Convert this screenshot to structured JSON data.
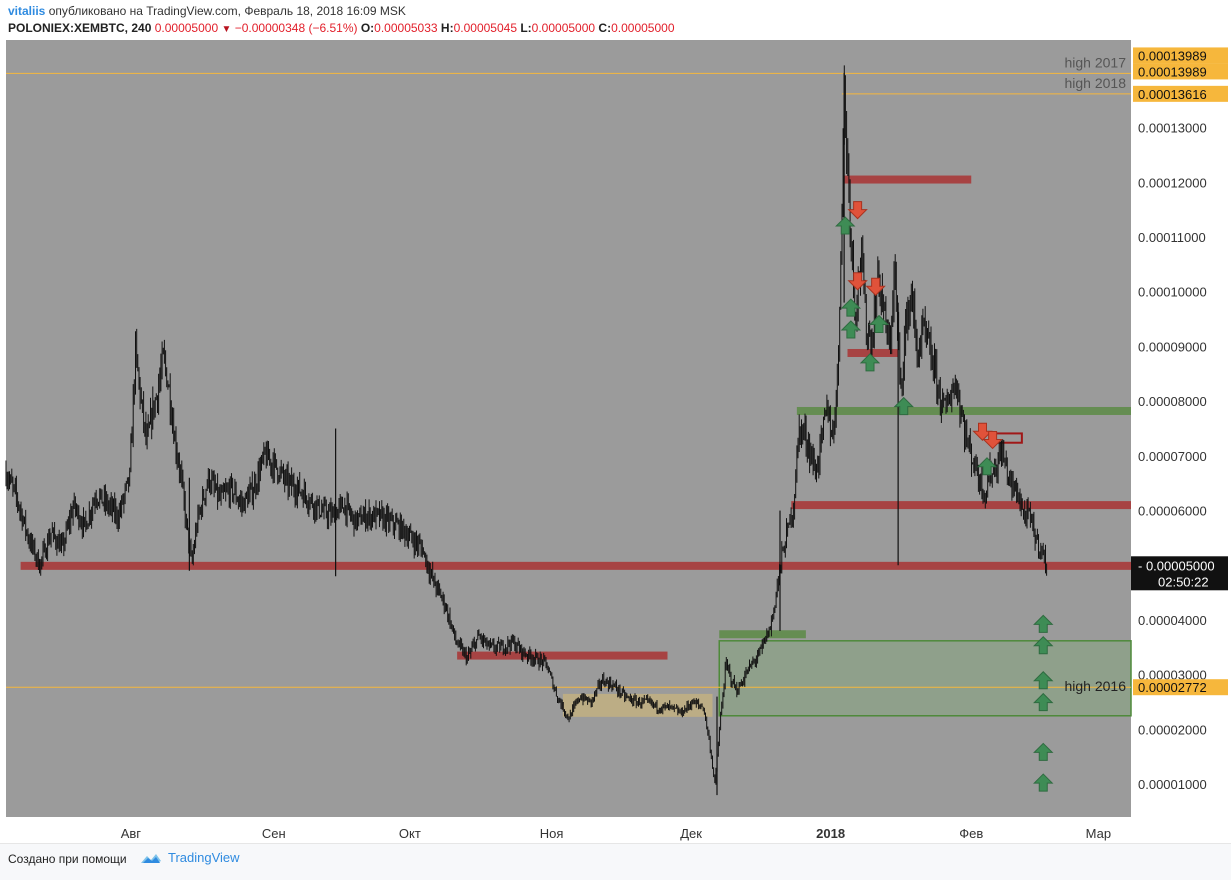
{
  "header": {
    "author": "vitaliis",
    "published": "опубликовано на TradingView.com, Февраль 18, 2018 16:09 MSK"
  },
  "symbol_bar": {
    "symbol": "POLONIEX:XEMBTC, 240",
    "price": "0.00005000",
    "change": "−0.00000348 (−6.51%)",
    "o_label": "O:",
    "o": "0.00005033",
    "h_label": "H:",
    "h": "0.00005045",
    "l_label": "L:",
    "l": "0.00005000",
    "c_label": "C:",
    "c": "0.00005000"
  },
  "footer": {
    "created": "Создано при помощи",
    "brand": "TradingView"
  },
  "colors": {
    "plot_bg": "#9b9b9b",
    "red_zone": "#a83a3a",
    "green_zone": "#5f8c4a",
    "orange_line": "#f6b73c",
    "tan_zone": "#c7b37e",
    "arrow_green": "#3e8c55",
    "arrow_red": "#e0523a"
  },
  "chart_data": {
    "type": "candlestick",
    "ylim": [
      4e-06,
      0.000146
    ],
    "y_ticks": [
      "0.00001000",
      "0.00002000",
      "0.00003000",
      "0.00004000",
      "0.00006000",
      "0.00007000",
      "0.00008000",
      "0.00009000",
      "0.00010000",
      "0.00011000",
      "0.00012000",
      "0.00013000"
    ],
    "x_labels": [
      "Авг",
      "Сен",
      "Окт",
      "Ноя",
      "Дек",
      "2018",
      "Фев",
      "Мар"
    ],
    "x_label_positions": [
      0.111,
      0.238,
      0.359,
      0.485,
      0.609,
      0.733,
      0.858,
      0.971
    ],
    "price_path": [
      [
        0.0,
        6.7e-05
      ],
      [
        0.01,
        6.2e-05
      ],
      [
        0.02,
        5.5e-05
      ],
      [
        0.03,
        5e-05
      ],
      [
        0.04,
        5.6e-05
      ],
      [
        0.05,
        5.3e-05
      ],
      [
        0.06,
        6.1e-05
      ],
      [
        0.07,
        5.7e-05
      ],
      [
        0.08,
        6.3e-05
      ],
      [
        0.09,
        6.1e-05
      ],
      [
        0.1,
        5.9e-05
      ],
      [
        0.11,
        6.6e-05
      ],
      [
        0.115,
        8.9e-05
      ],
      [
        0.12,
        8e-05
      ],
      [
        0.125,
        7.2e-05
      ],
      [
        0.13,
        7.8e-05
      ],
      [
        0.135,
        8.2e-05
      ],
      [
        0.14,
        8.8e-05
      ],
      [
        0.145,
        8.2e-05
      ],
      [
        0.15,
        7.3e-05
      ],
      [
        0.155,
        6.7e-05
      ],
      [
        0.16,
        5.8e-05
      ],
      [
        0.165,
        5e-05
      ],
      [
        0.17,
        5.8e-05
      ],
      [
        0.18,
        6.6e-05
      ],
      [
        0.19,
        6.2e-05
      ],
      [
        0.2,
        6.4e-05
      ],
      [
        0.21,
        6.1e-05
      ],
      [
        0.22,
        6.4e-05
      ],
      [
        0.23,
        7e-05
      ],
      [
        0.24,
        6.8e-05
      ],
      [
        0.25,
        6.5e-05
      ],
      [
        0.26,
        6.4e-05
      ],
      [
        0.27,
        6.2e-05
      ],
      [
        0.28,
        6e-05
      ],
      [
        0.29,
        5.9e-05
      ],
      [
        0.3,
        6.1e-05
      ],
      [
        0.31,
        5.8e-05
      ],
      [
        0.32,
        5.9e-05
      ],
      [
        0.33,
        5.9e-05
      ],
      [
        0.34,
        5.8e-05
      ],
      [
        0.35,
        5.7e-05
      ],
      [
        0.36,
        5.5e-05
      ],
      [
        0.37,
        5.3e-05
      ],
      [
        0.38,
        4.7e-05
      ],
      [
        0.39,
        4.3e-05
      ],
      [
        0.4,
        3.6e-05
      ],
      [
        0.41,
        3.3e-05
      ],
      [
        0.42,
        3.7e-05
      ],
      [
        0.43,
        3.5e-05
      ],
      [
        0.44,
        3.5e-05
      ],
      [
        0.45,
        3.6e-05
      ],
      [
        0.46,
        3.4e-05
      ],
      [
        0.47,
        3.3e-05
      ],
      [
        0.48,
        3.2e-05
      ],
      [
        0.49,
        2.6e-05
      ],
      [
        0.5,
        2.2e-05
      ],
      [
        0.51,
        2.6e-05
      ],
      [
        0.52,
        2.5e-05
      ],
      [
        0.53,
        2.9e-05
      ],
      [
        0.54,
        2.8e-05
      ],
      [
        0.55,
        2.6e-05
      ],
      [
        0.56,
        2.5e-05
      ],
      [
        0.57,
        2.5e-05
      ],
      [
        0.58,
        2.4e-05
      ],
      [
        0.59,
        2.4e-05
      ],
      [
        0.6,
        2.3e-05
      ],
      [
        0.61,
        2.5e-05
      ],
      [
        0.62,
        2.4e-05
      ],
      [
        0.625,
        1.8e-05
      ],
      [
        0.63,
        1e-05
      ],
      [
        0.635,
        2.2e-05
      ],
      [
        0.64,
        3.2e-05
      ],
      [
        0.645,
        2.9e-05
      ],
      [
        0.65,
        2.7e-05
      ],
      [
        0.66,
        3.1e-05
      ],
      [
        0.67,
        3.4e-05
      ],
      [
        0.68,
        3.9e-05
      ],
      [
        0.69,
        5.2e-05
      ],
      [
        0.7,
        6.1e-05
      ],
      [
        0.705,
        7.5e-05
      ],
      [
        0.71,
        7.4e-05
      ],
      [
        0.72,
        6.7e-05
      ],
      [
        0.73,
        7.9e-05
      ],
      [
        0.735,
        7.3e-05
      ],
      [
        0.74,
        8.8e-05
      ],
      [
        0.745,
        0.000137
      ],
      [
        0.75,
        0.000115
      ],
      [
        0.755,
        9.6e-05
      ],
      [
        0.76,
        0.000107
      ],
      [
        0.765,
        9.3e-05
      ],
      [
        0.77,
        9.1e-05
      ],
      [
        0.775,
        0.000103
      ],
      [
        0.78,
        9.7e-05
      ],
      [
        0.785,
        8.9e-05
      ],
      [
        0.79,
        0.000104
      ],
      [
        0.795,
        8.2e-05
      ],
      [
        0.8,
        9.4e-05
      ],
      [
        0.805,
        0.0001
      ],
      [
        0.81,
        8.8e-05
      ],
      [
        0.815,
        9.3e-05
      ],
      [
        0.82,
        9e-05
      ],
      [
        0.825,
        8.6e-05
      ],
      [
        0.83,
        8.1e-05
      ],
      [
        0.835,
        7.8e-05
      ],
      [
        0.84,
        8.2e-05
      ],
      [
        0.845,
        8.3e-05
      ],
      [
        0.85,
        7.7e-05
      ],
      [
        0.855,
        7.2e-05
      ],
      [
        0.86,
        6.9e-05
      ],
      [
        0.865,
        6.6e-05
      ],
      [
        0.87,
        6.3e-05
      ],
      [
        0.875,
        6.7e-05
      ],
      [
        0.88,
        6.8e-05
      ],
      [
        0.885,
        7.1e-05
      ],
      [
        0.89,
        6.7e-05
      ],
      [
        0.895,
        6.4e-05
      ],
      [
        0.9,
        6.3e-05
      ],
      [
        0.905,
        5.9e-05
      ],
      [
        0.91,
        5.9e-05
      ],
      [
        0.915,
        5.5e-05
      ],
      [
        0.92,
        5.3e-05
      ],
      [
        0.925,
        5e-05
      ]
    ],
    "spikes": [
      {
        "x": 0.163,
        "lo": 4.9e-05,
        "hi": 6.6e-05
      },
      {
        "x": 0.293,
        "lo": 4.8e-05,
        "hi": 7.5e-05
      },
      {
        "x": 0.632,
        "lo": 8e-06,
        "hi": 2.6e-05
      },
      {
        "x": 0.688,
        "lo": 3.8e-05,
        "hi": 6e-05
      },
      {
        "x": 0.793,
        "lo": 5e-05,
        "hi": 9.8e-05
      },
      {
        "x": 0.745,
        "lo": 9.8e-05,
        "hi": 0.00014
      }
    ],
    "zones": [
      {
        "kind": "red",
        "x0": 0.013,
        "x1": 1.0,
        "y": 4.99e-05
      },
      {
        "kind": "red",
        "x0": 0.401,
        "x1": 0.588,
        "y": 3.35e-05
      },
      {
        "kind": "red",
        "x0": 0.745,
        "x1": 0.858,
        "y": 0.0001205
      },
      {
        "kind": "red",
        "x0": 0.748,
        "x1": 0.793,
        "y": 8.88e-05
      },
      {
        "kind": "red",
        "x0": 0.698,
        "x1": 1.0,
        "y": 6.1e-05
      },
      {
        "kind": "green",
        "x0": 0.703,
        "x1": 1.0,
        "y": 7.82e-05
      },
      {
        "kind": "green",
        "x0": 0.634,
        "x1": 0.711,
        "y": 3.74e-05
      }
    ],
    "green_box": {
      "x0": 0.634,
      "x1": 1.0,
      "y0": 2.25e-05,
      "y1": 3.62e-05
    },
    "tan_box": {
      "x0": 0.495,
      "x1": 0.628,
      "y0": 2.23e-05,
      "y1": 2.65e-05
    },
    "red_box": {
      "x0": 0.88,
      "x1": 0.903,
      "y0": 7.24e-05,
      "y1": 7.41e-05
    },
    "hlines": [
      {
        "y": 0.00013989,
        "label": "high 2017",
        "x0": 0.0,
        "price": "0.00013989"
      },
      {
        "y": 0.00013616,
        "label": "high 2018",
        "x0": 0.743,
        "price": "0.00013616"
      },
      {
        "y": 2.772e-05,
        "label": "high 2016",
        "x0": 0.0,
        "price": "0.00002772"
      }
    ],
    "extra_price_label": {
      "y": 0.00013989,
      "price": "0.00013989"
    },
    "current": {
      "price": "0.00005000",
      "timer": "02:50:22"
    },
    "arrows_up": [
      {
        "x": 0.746,
        "y": 0.000112
      },
      {
        "x": 0.751,
        "y": 9.7e-05
      },
      {
        "x": 0.751,
        "y": 9.3e-05
      },
      {
        "x": 0.768,
        "y": 8.7e-05
      },
      {
        "x": 0.776,
        "y": 9.4e-05
      },
      {
        "x": 0.798,
        "y": 7.9e-05
      },
      {
        "x": 0.872,
        "y": 6.8e-05
      },
      {
        "x": 0.922,
        "y": 3.92e-05
      },
      {
        "x": 0.922,
        "y": 3.53e-05
      },
      {
        "x": 0.922,
        "y": 2.89e-05
      },
      {
        "x": 0.922,
        "y": 2.49e-05
      },
      {
        "x": 0.922,
        "y": 1.58e-05
      },
      {
        "x": 0.922,
        "y": 1.02e-05
      }
    ],
    "arrows_down": [
      {
        "x": 0.757,
        "y": 0.000115
      },
      {
        "x": 0.757,
        "y": 0.000102
      },
      {
        "x": 0.773,
        "y": 0.000101
      },
      {
        "x": 0.868,
        "y": 7.45e-05
      },
      {
        "x": 0.877,
        "y": 7.3e-05
      }
    ]
  }
}
